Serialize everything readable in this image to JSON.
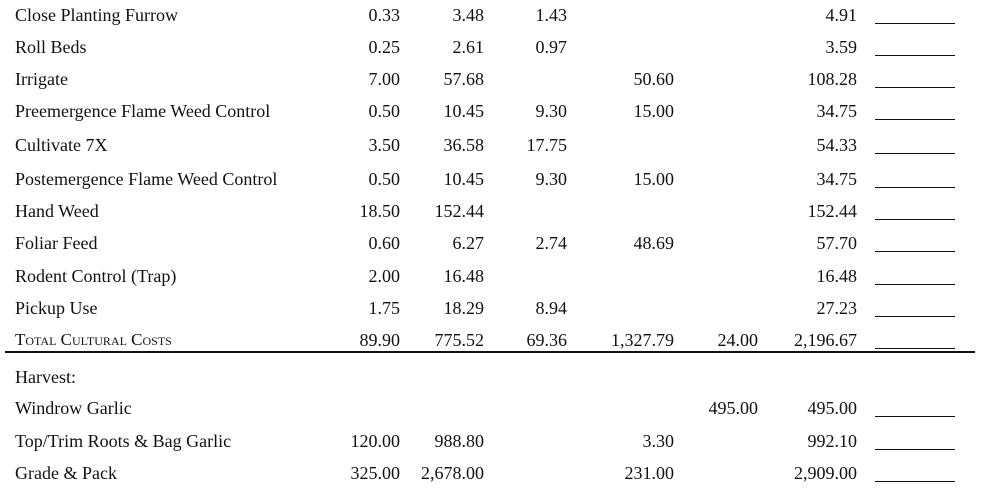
{
  "table": {
    "cultural_rows": [
      [
        "Close Planting Furrow",
        "0.33",
        "3.48",
        "1.43",
        null,
        null,
        "4.91"
      ],
      [
        "Roll Beds",
        "0.25",
        "2.61",
        "0.97",
        null,
        null,
        "3.59"
      ],
      [
        "Irrigate",
        "7.00",
        "57.68",
        null,
        "50.60",
        null,
        "108.28"
      ],
      [
        "Preemergence Flame Weed Control",
        "0.50",
        "10.45",
        "9.30",
        "15.00",
        null,
        "34.75"
      ],
      [
        "Cultivate 7X",
        "3.50",
        "36.58",
        "17.75",
        null,
        null,
        "54.33"
      ],
      [
        "Postemergence Flame Weed Control",
        "0.50",
        "10.45",
        "9.30",
        "15.00",
        null,
        "34.75"
      ],
      [
        "Hand Weed",
        "18.50",
        "152.44",
        null,
        null,
        null,
        "152.44"
      ],
      [
        "Foliar Feed",
        "0.60",
        "6.27",
        "2.74",
        "48.69",
        null,
        "57.70"
      ],
      [
        "Rodent Control (Trap)",
        "2.00",
        "16.48",
        null,
        null,
        null,
        "16.48"
      ],
      [
        "Pickup Use",
        "1.75",
        "18.29",
        "8.94",
        null,
        null,
        "27.23"
      ]
    ],
    "total_row": [
      "Total Cultural Costs",
      "89.90",
      "775.52",
      "69.36",
      "1,327.79",
      "24.00",
      "2,196.67"
    ],
    "harvest_heading": "Harvest:",
    "harvest_rows": [
      [
        "Windrow Garlic",
        null,
        null,
        null,
        null,
        "495.00",
        "495.00"
      ],
      [
        "Top/Trim Roots & Bag Garlic",
        "120.00",
        "988.80",
        null,
        "3.30",
        null,
        "992.10"
      ],
      [
        "Grade & Pack",
        "325.00",
        "2,678.00",
        null,
        "231.00",
        null,
        "2,909.00"
      ]
    ]
  }
}
